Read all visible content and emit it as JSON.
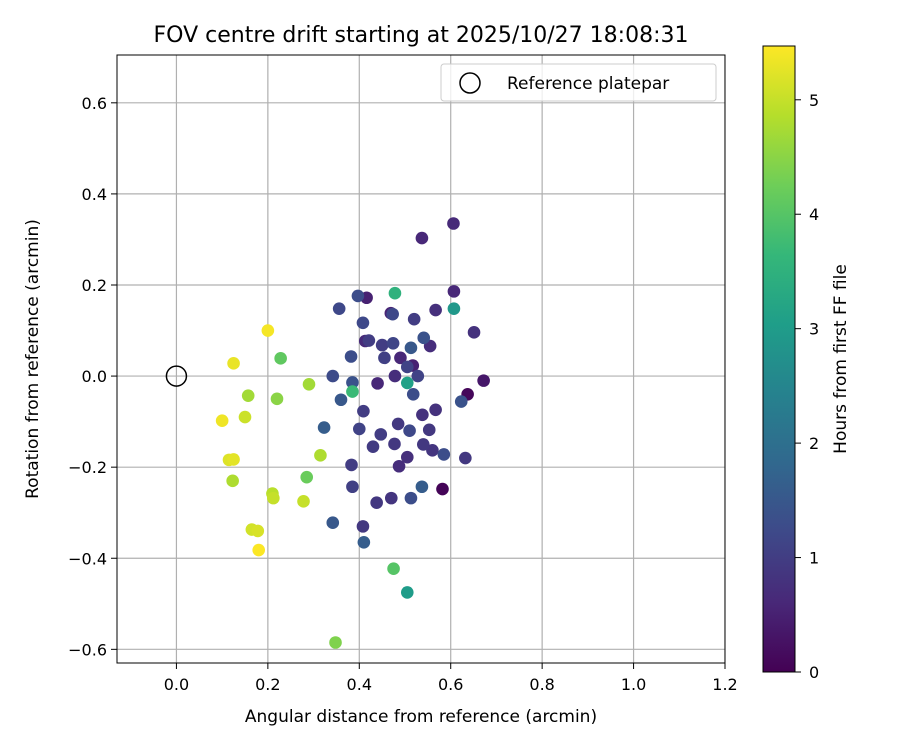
{
  "chart_data": {
    "type": "scatter",
    "title": "FOV centre drift starting at 2025/10/27 18:08:31",
    "xlabel": "Angular distance from reference (arcmin)",
    "ylabel": "Rotation from reference (arcmin)",
    "xlim": [
      -0.13,
      1.2
    ],
    "ylim": [
      -0.63,
      0.705
    ],
    "xticks": [
      0.0,
      0.2,
      0.4,
      0.6,
      0.8,
      1.0,
      1.2
    ],
    "xtick_labels": [
      "0.0",
      "0.2",
      "0.4",
      "0.6",
      "0.8",
      "1.0",
      "1.2"
    ],
    "yticks": [
      -0.6,
      -0.4,
      -0.2,
      0.0,
      0.2,
      0.4,
      0.6
    ],
    "ytick_labels": [
      "−0.6",
      "−0.4",
      "−0.2",
      "0.0",
      "0.2",
      "0.4",
      "0.6"
    ],
    "grid": true,
    "legend": {
      "location": "upper right",
      "entries": [
        "Reference platepar"
      ]
    },
    "reference_point": {
      "x": 0.0,
      "y": 0.0,
      "marker": "open circle"
    },
    "colorbar": {
      "label": "Hours from first FF file",
      "colormap": "viridis",
      "range": [
        0,
        5.47
      ],
      "ticks": [
        0,
        1,
        2,
        3,
        4,
        5
      ],
      "tick_labels": [
        "0",
        "1",
        "2",
        "3",
        "4",
        "5"
      ]
    },
    "points": [
      {
        "x": 0.582,
        "y": -0.248,
        "c": 0.05
      },
      {
        "x": 0.637,
        "y": -0.04,
        "c": 0.1
      },
      {
        "x": 0.672,
        "y": -0.01,
        "c": 0.35
      },
      {
        "x": 0.537,
        "y": 0.303,
        "c": 0.6
      },
      {
        "x": 0.606,
        "y": 0.335,
        "c": 0.65
      },
      {
        "x": 0.607,
        "y": 0.186,
        "c": 0.6
      },
      {
        "x": 0.651,
        "y": 0.096,
        "c": 0.8
      },
      {
        "x": 0.416,
        "y": 0.172,
        "c": 0.5
      },
      {
        "x": 0.469,
        "y": 0.138,
        "c": 0.55
      },
      {
        "x": 0.517,
        "y": 0.023,
        "c": 0.5
      },
      {
        "x": 0.49,
        "y": 0.04,
        "c": 0.6
      },
      {
        "x": 0.413,
        "y": 0.077,
        "c": 0.65
      },
      {
        "x": 0.44,
        "y": -0.016,
        "c": 0.6
      },
      {
        "x": 0.478,
        "y": 0.0,
        "c": 0.7
      },
      {
        "x": 0.555,
        "y": 0.066,
        "c": 0.7
      },
      {
        "x": 0.567,
        "y": 0.145,
        "c": 0.75
      },
      {
        "x": 0.567,
        "y": -0.074,
        "c": 0.8
      },
      {
        "x": 0.538,
        "y": -0.085,
        "c": 0.8
      },
      {
        "x": 0.553,
        "y": -0.118,
        "c": 0.9
      },
      {
        "x": 0.56,
        "y": -0.163,
        "c": 0.85
      },
      {
        "x": 0.54,
        "y": -0.15,
        "c": 0.9
      },
      {
        "x": 0.632,
        "y": -0.18,
        "c": 0.9
      },
      {
        "x": 0.505,
        "y": -0.178,
        "c": 0.75
      },
      {
        "x": 0.487,
        "y": -0.198,
        "c": 0.7
      },
      {
        "x": 0.477,
        "y": -0.149,
        "c": 0.9
      },
      {
        "x": 0.485,
        "y": -0.105,
        "c": 0.9
      },
      {
        "x": 0.47,
        "y": -0.268,
        "c": 0.85
      },
      {
        "x": 0.438,
        "y": -0.278,
        "c": 0.9
      },
      {
        "x": 0.408,
        "y": -0.33,
        "c": 0.9
      },
      {
        "x": 0.43,
        "y": -0.155,
        "c": 0.95
      },
      {
        "x": 0.447,
        "y": -0.128,
        "c": 1.0
      },
      {
        "x": 0.409,
        "y": -0.077,
        "c": 1.0
      },
      {
        "x": 0.383,
        "y": -0.195,
        "c": 1.0
      },
      {
        "x": 0.385,
        "y": -0.243,
        "c": 1.05
      },
      {
        "x": 0.4,
        "y": -0.116,
        "c": 1.1
      },
      {
        "x": 0.421,
        "y": 0.078,
        "c": 1.0
      },
      {
        "x": 0.45,
        "y": 0.068,
        "c": 1.0
      },
      {
        "x": 0.455,
        "y": 0.04,
        "c": 1.05
      },
      {
        "x": 0.52,
        "y": 0.125,
        "c": 1.0
      },
      {
        "x": 0.528,
        "y": 0.0,
        "c": 1.1
      },
      {
        "x": 0.505,
        "y": 0.02,
        "c": 1.1
      },
      {
        "x": 0.474,
        "y": 0.072,
        "c": 1.15
      },
      {
        "x": 0.473,
        "y": 0.136,
        "c": 1.2
      },
      {
        "x": 0.408,
        "y": 0.117,
        "c": 1.2
      },
      {
        "x": 0.397,
        "y": 0.176,
        "c": 1.3
      },
      {
        "x": 0.356,
        "y": 0.148,
        "c": 1.2
      },
      {
        "x": 0.342,
        "y": 0.0,
        "c": 1.25
      },
      {
        "x": 0.382,
        "y": 0.043,
        "c": 1.3
      },
      {
        "x": 0.385,
        "y": -0.014,
        "c": 1.4
      },
      {
        "x": 0.36,
        "y": -0.052,
        "c": 1.5
      },
      {
        "x": 0.51,
        "y": -0.12,
        "c": 1.2
      },
      {
        "x": 0.518,
        "y": -0.04,
        "c": 1.3
      },
      {
        "x": 0.585,
        "y": -0.172,
        "c": 1.3
      },
      {
        "x": 0.623,
        "y": -0.056,
        "c": 1.4
      },
      {
        "x": 0.541,
        "y": 0.084,
        "c": 1.4
      },
      {
        "x": 0.513,
        "y": 0.062,
        "c": 1.5
      },
      {
        "x": 0.513,
        "y": -0.268,
        "c": 1.3
      },
      {
        "x": 0.537,
        "y": -0.243,
        "c": 1.6
      },
      {
        "x": 0.323,
        "y": -0.113,
        "c": 1.6
      },
      {
        "x": 0.342,
        "y": -0.322,
        "c": 1.5
      },
      {
        "x": 0.41,
        "y": -0.365,
        "c": 1.6
      },
      {
        "x": 0.607,
        "y": 0.148,
        "c": 2.9
      },
      {
        "x": 0.505,
        "y": -0.475,
        "c": 3.0
      },
      {
        "x": 0.505,
        "y": -0.015,
        "c": 3.1
      },
      {
        "x": 0.478,
        "y": 0.182,
        "c": 3.5
      },
      {
        "x": 0.385,
        "y": -0.034,
        "c": 3.7
      },
      {
        "x": 0.475,
        "y": -0.423,
        "c": 4.0
      },
      {
        "x": 0.228,
        "y": 0.039,
        "c": 4.1
      },
      {
        "x": 0.285,
        "y": -0.222,
        "c": 4.2
      },
      {
        "x": 0.348,
        "y": -0.585,
        "c": 4.4
      },
      {
        "x": 0.22,
        "y": -0.05,
        "c": 4.5
      },
      {
        "x": 0.157,
        "y": -0.043,
        "c": 4.7
      },
      {
        "x": 0.29,
        "y": -0.018,
        "c": 4.7
      },
      {
        "x": 0.315,
        "y": -0.174,
        "c": 4.8
      },
      {
        "x": 0.123,
        "y": -0.23,
        "c": 4.8
      },
      {
        "x": 0.21,
        "y": -0.258,
        "c": 4.9
      },
      {
        "x": 0.212,
        "y": -0.268,
        "c": 5.0
      },
      {
        "x": 0.278,
        "y": -0.275,
        "c": 5.0
      },
      {
        "x": 0.15,
        "y": -0.09,
        "c": 5.05
      },
      {
        "x": 0.165,
        "y": -0.337,
        "c": 5.1
      },
      {
        "x": 0.178,
        "y": -0.34,
        "c": 5.15
      },
      {
        "x": 0.115,
        "y": -0.184,
        "c": 5.2
      },
      {
        "x": 0.125,
        "y": -0.183,
        "c": 5.25
      },
      {
        "x": 0.125,
        "y": 0.028,
        "c": 5.3
      },
      {
        "x": 0.1,
        "y": -0.098,
        "c": 5.35
      },
      {
        "x": 0.2,
        "y": 0.1,
        "c": 5.4
      },
      {
        "x": 0.18,
        "y": -0.382,
        "c": 5.45
      }
    ]
  }
}
